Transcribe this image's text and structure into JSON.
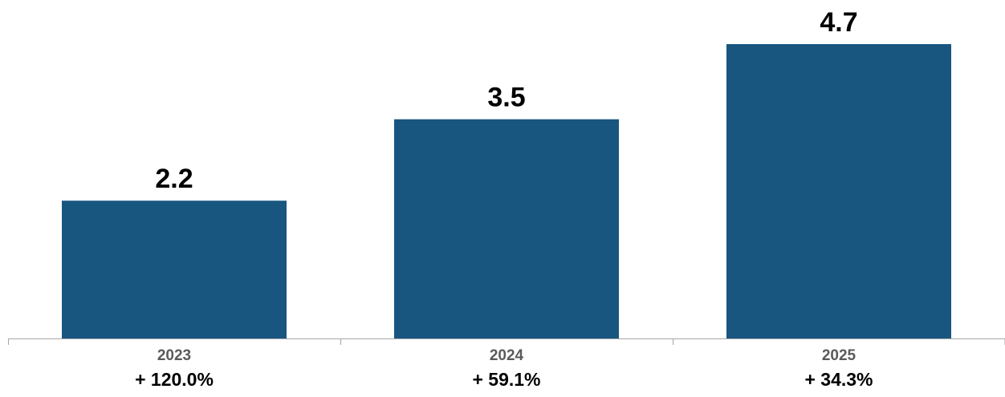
{
  "chart_data": {
    "type": "bar",
    "categories": [
      "2023",
      "2024",
      "2025"
    ],
    "values": [
      2.2,
      3.5,
      4.7
    ],
    "value_labels": [
      "2.2",
      "3.5",
      "4.7"
    ],
    "growth_labels": [
      "+ 120.0%",
      "+ 59.1%",
      "+ 34.3%"
    ],
    "title": "",
    "xlabel": "",
    "ylabel": "",
    "ylim": [
      0,
      4.7
    ],
    "grid": false,
    "legend": "none",
    "colors": {
      "bar": "#185680",
      "axis": "#a6a6a6"
    }
  }
}
